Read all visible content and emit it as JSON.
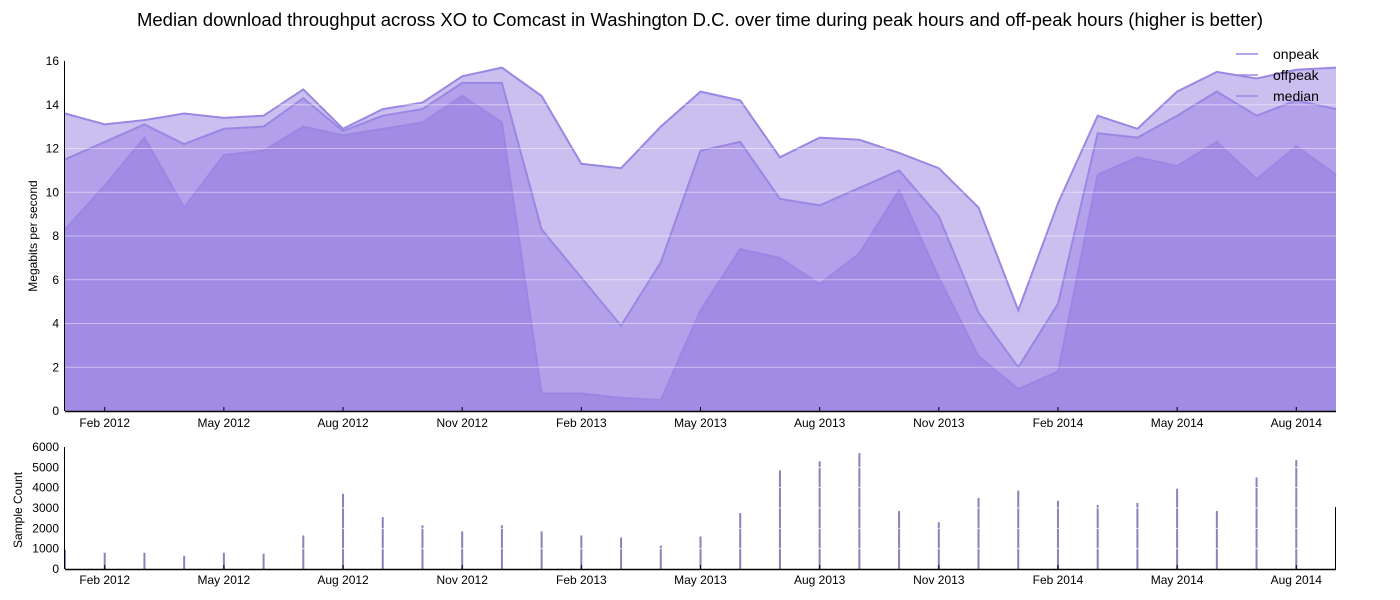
{
  "chart_data": [
    {
      "type": "area",
      "title": "Median download throughput across XO to Comcast in Washington D.C. over time during peak hours and off-peak hours (higher is better)",
      "ylabel": "Megabits per second",
      "xlabel": "",
      "ylim": [
        0,
        16
      ],
      "yticks": [
        0,
        2,
        4,
        6,
        8,
        10,
        12,
        14,
        16
      ],
      "x": [
        "2012-01",
        "2012-02",
        "2012-03",
        "2012-04",
        "2012-05",
        "2012-06",
        "2012-07",
        "2012-08",
        "2012-09",
        "2012-10",
        "2012-11",
        "2012-12",
        "2013-01",
        "2013-02",
        "2013-03",
        "2013-04",
        "2013-05",
        "2013-06",
        "2013-07",
        "2013-08",
        "2013-09",
        "2013-10",
        "2013-11",
        "2013-12",
        "2014-01",
        "2014-02",
        "2014-03",
        "2014-04",
        "2014-05",
        "2014-06",
        "2014-07",
        "2014-08",
        "2014-09"
      ],
      "xticks": [
        {
          "date": "2012-02",
          "label": "Feb 2012"
        },
        {
          "date": "2012-05",
          "label": "May 2012"
        },
        {
          "date": "2012-08",
          "label": "Aug 2012"
        },
        {
          "date": "2012-11",
          "label": "Nov 2012"
        },
        {
          "date": "2013-02",
          "label": "Feb 2013"
        },
        {
          "date": "2013-05",
          "label": "May 2013"
        },
        {
          "date": "2013-08",
          "label": "Aug 2013"
        },
        {
          "date": "2013-11",
          "label": "Nov 2013"
        },
        {
          "date": "2014-02",
          "label": "Feb 2014"
        },
        {
          "date": "2014-05",
          "label": "May 2014"
        },
        {
          "date": "2014-08",
          "label": "Aug 2014"
        }
      ],
      "series": [
        {
          "name": "offpeak",
          "color": "#cbbff0",
          "values": [
            13.6,
            13.1,
            13.3,
            13.6,
            13.4,
            13.5,
            14.7,
            12.9,
            13.8,
            14.1,
            15.3,
            15.7,
            14.4,
            11.3,
            11.1,
            13.0,
            14.6,
            14.2,
            11.6,
            12.5,
            12.4,
            11.8,
            11.1,
            9.3,
            4.6,
            9.5,
            13.5,
            12.9,
            14.6,
            15.5,
            15.2,
            15.6,
            15.7
          ]
        },
        {
          "name": "median",
          "color": "#b3a0ea",
          "values": [
            11.5,
            12.3,
            13.1,
            12.2,
            12.9,
            13.0,
            14.3,
            12.8,
            13.5,
            13.8,
            15.0,
            15.0,
            8.3,
            6.1,
            3.9,
            6.8,
            11.9,
            12.3,
            9.7,
            9.4,
            10.2,
            11.0,
            8.9,
            4.5,
            2.0,
            4.9,
            12.7,
            12.5,
            13.5,
            14.6,
            13.5,
            14.2,
            13.8
          ]
        },
        {
          "name": "onpeak",
          "color": "#a08ce4",
          "values": [
            8.3,
            10.3,
            12.5,
            9.3,
            11.7,
            11.9,
            13.0,
            12.6,
            12.9,
            13.2,
            14.4,
            13.2,
            0.8,
            0.8,
            0.6,
            0.5,
            4.6,
            7.4,
            7.0,
            5.8,
            7.2,
            10.1,
            6.1,
            2.5,
            1.0,
            1.8,
            10.8,
            11.6,
            11.2,
            12.3,
            10.6,
            12.1,
            10.8
          ]
        }
      ],
      "legend": {
        "placement": "top-right",
        "entries": [
          "onpeak",
          "offpeak",
          "median"
        ]
      },
      "grid": true
    },
    {
      "type": "bar",
      "ylabel": "Sample Count",
      "ylim": [
        0,
        6000
      ],
      "yticks": [
        0,
        1000,
        2000,
        3000,
        4000,
        5000,
        6000
      ],
      "x": [
        "2012-01",
        "2012-02",
        "2012-03",
        "2012-04",
        "2012-05",
        "2012-06",
        "2012-07",
        "2012-08",
        "2012-09",
        "2012-10",
        "2012-11",
        "2012-12",
        "2013-01",
        "2013-02",
        "2013-03",
        "2013-04",
        "2013-05",
        "2013-06",
        "2013-07",
        "2013-08",
        "2013-09",
        "2013-10",
        "2013-11",
        "2013-12",
        "2014-01",
        "2014-02",
        "2014-03",
        "2014-04",
        "2014-05",
        "2014-06",
        "2014-07",
        "2014-08"
      ],
      "values": [
        950,
        800,
        800,
        650,
        800,
        750,
        1650,
        3700,
        2550,
        2150,
        1850,
        2150,
        1850,
        1650,
        1550,
        1150,
        1600,
        2750,
        4850,
        5300,
        5700,
        2850,
        2300,
        3500,
        3850,
        3350,
        3150,
        3250,
        3950,
        2850,
        4500,
        5350
      ],
      "bar_color": "#8e80b8",
      "grid": true
    }
  ]
}
